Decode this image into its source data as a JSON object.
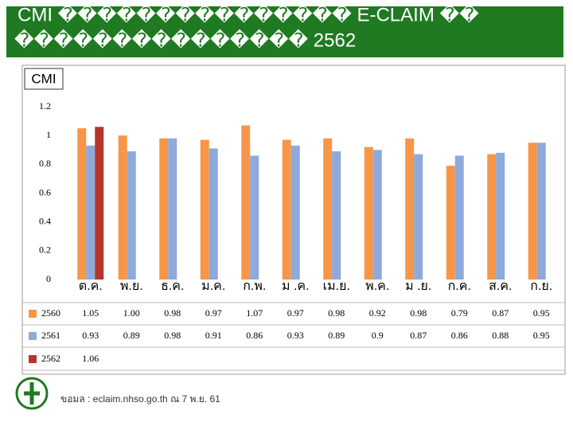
{
  "header": {
    "title_line1": "CMI ��������������� E-CLAIM ��",
    "title_line2": "��������������� 2562"
  },
  "chart_data": {
    "type": "bar",
    "title": "CMI",
    "categories": [
      "ต.ค.",
      "พ.ย.",
      "ธ.ค.",
      "ม.ค.",
      "ก.พ.",
      "ม .ค.",
      "เม.ย.",
      "พ.ค.",
      "ม .ย.",
      "ก.ค.",
      "ส.ค.",
      "ก.ย."
    ],
    "series": [
      {
        "name": "2560",
        "color": "#f79646",
        "values": [
          1.05,
          1.0,
          0.98,
          0.97,
          1.07,
          0.97,
          0.98,
          0.92,
          0.98,
          0.79,
          0.87,
          0.95
        ],
        "value_labels": [
          "1.05",
          "1.00",
          "0.98",
          "0.97",
          "1.07",
          "0.97",
          "0.98",
          "0.92",
          "0.98",
          "0.79",
          "0.87",
          "0.95"
        ]
      },
      {
        "name": "2561",
        "color": "#8eaadb",
        "values": [
          0.93,
          0.89,
          0.98,
          0.91,
          0.86,
          0.93,
          0.89,
          0.9,
          0.87,
          0.86,
          0.88,
          0.95
        ]
      },
      {
        "name": "2562",
        "color": "#b7342a",
        "values": [
          1.06,
          null,
          null,
          null,
          null,
          null,
          null,
          null,
          null,
          null,
          null,
          null
        ]
      }
    ],
    "ylim": [
      0,
      1.2
    ],
    "yticks": [
      0,
      0.2,
      0.4,
      0.6,
      0.8,
      1,
      1.2
    ]
  },
  "footer": {
    "source": "ขอมล  : eclaim.nhso.go.th  ณ 7 พ.ย. 61"
  }
}
